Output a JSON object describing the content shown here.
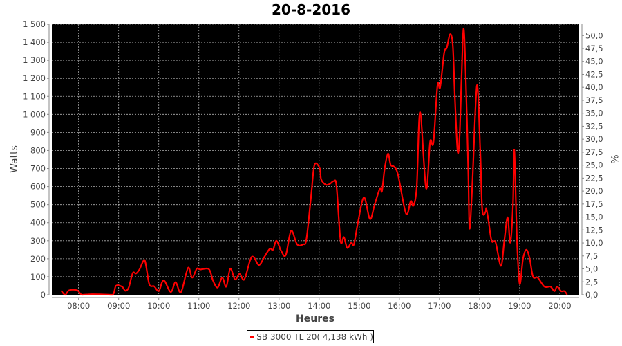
{
  "chart_data": {
    "type": "line",
    "title": "20-8-2016",
    "xlabel": "Heures",
    "ylabel": "Watts",
    "y2label": "%",
    "xlim": [
      "07:20",
      "20:29"
    ],
    "ylim": [
      0,
      1500
    ],
    "y2lim": [
      0,
      52.17
    ],
    "grid": true,
    "background": "#000000",
    "grid_color": "#b0b0b0",
    "xticks": [
      "08:00",
      "09:00",
      "10:00",
      "11:00",
      "12:00",
      "13:00",
      "14:00",
      "15:00",
      "16:00",
      "17:00",
      "18:00",
      "19:00",
      "20:00"
    ],
    "yticks": [
      0,
      100,
      200,
      300,
      400,
      500,
      600,
      700,
      800,
      900,
      1000,
      1100,
      1200,
      1300,
      1400,
      1500
    ],
    "ytick_labels": [
      "0",
      "100",
      "200",
      "300",
      "400",
      "500",
      "600",
      "700",
      "800",
      "900",
      "1 000",
      "1 100",
      "1 200",
      "1 300",
      "1 400",
      "1 500"
    ],
    "y2ticks": [
      0,
      2.5,
      5,
      7.5,
      10,
      12.5,
      15,
      17.5,
      20,
      22.5,
      25,
      27.5,
      30,
      32.5,
      35,
      37.5,
      40,
      42.5,
      45,
      47.5,
      50
    ],
    "y2tick_labels": [
      "0,0",
      "2,5",
      "5,0",
      "7,5",
      "10,0",
      "12,5",
      "15,0",
      "17,5",
      "20,0",
      "22,5",
      "25,0",
      "27,5",
      "30,0",
      "32,5",
      "35,0",
      "37,5",
      "40,0",
      "42,5",
      "45,0",
      "47,5",
      "50,0"
    ],
    "legend_position": "bottom",
    "series": [
      {
        "name": "SB 3000 TL 20( 4,138 kWh )",
        "color": "#ff0000",
        "points": [
          [
            "07:34",
            23
          ],
          [
            "07:40",
            0
          ],
          [
            "07:46",
            25
          ],
          [
            "07:58",
            25
          ],
          [
            "08:05",
            0
          ],
          [
            "08:20",
            3
          ],
          [
            "08:35",
            2
          ],
          [
            "08:51",
            0
          ],
          [
            "08:56",
            50
          ],
          [
            "09:05",
            45
          ],
          [
            "09:10",
            22
          ],
          [
            "09:15",
            40
          ],
          [
            "09:21",
            120
          ],
          [
            "09:26",
            118
          ],
          [
            "09:31",
            140
          ],
          [
            "09:37",
            188
          ],
          [
            "09:40",
            180
          ],
          [
            "09:45",
            70
          ],
          [
            "09:48",
            48
          ],
          [
            "09:53",
            47
          ],
          [
            "10:00",
            20
          ],
          [
            "10:05",
            70
          ],
          [
            "10:09",
            75
          ],
          [
            "10:18",
            15
          ],
          [
            "10:25",
            70
          ],
          [
            "10:31",
            17
          ],
          [
            "10:35",
            30
          ],
          [
            "10:44",
            150
          ],
          [
            "10:50",
            95
          ],
          [
            "10:57",
            145
          ],
          [
            "11:02",
            140
          ],
          [
            "11:15",
            142
          ],
          [
            "11:21",
            80
          ],
          [
            "11:28",
            40
          ],
          [
            "11:35",
            95
          ],
          [
            "11:41",
            45
          ],
          [
            "11:47",
            145
          ],
          [
            "11:54",
            85
          ],
          [
            "12:01",
            115
          ],
          [
            "12:08",
            85
          ],
          [
            "12:17",
            195
          ],
          [
            "12:22",
            210
          ],
          [
            "12:30",
            165
          ],
          [
            "12:38",
            210
          ],
          [
            "12:46",
            255
          ],
          [
            "12:51",
            250
          ],
          [
            "12:56",
            300
          ],
          [
            "13:03",
            245
          ],
          [
            "13:10",
            220
          ],
          [
            "13:18",
            355
          ],
          [
            "13:27",
            280
          ],
          [
            "13:36",
            280
          ],
          [
            "13:41",
            310
          ],
          [
            "13:48",
            550
          ],
          [
            "13:53",
            720
          ],
          [
            "14:01",
            700
          ],
          [
            "14:03",
            640
          ],
          [
            "14:10",
            610
          ],
          [
            "14:16",
            615
          ],
          [
            "14:22",
            630
          ],
          [
            "14:26",
            600
          ],
          [
            "14:32",
            300
          ],
          [
            "14:37",
            320
          ],
          [
            "14:42",
            260
          ],
          [
            "14:48",
            290
          ],
          [
            "14:52",
            280
          ],
          [
            "14:58",
            400
          ],
          [
            "15:07",
            540
          ],
          [
            "15:16",
            420
          ],
          [
            "15:23",
            500
          ],
          [
            "15:31",
            590
          ],
          [
            "15:34",
            575
          ],
          [
            "15:38",
            700
          ],
          [
            "15:43",
            783
          ],
          [
            "15:47",
            720
          ],
          [
            "15:52",
            710
          ],
          [
            "15:58",
            665
          ],
          [
            "16:10",
            450
          ],
          [
            "16:17",
            520
          ],
          [
            "16:21",
            495
          ],
          [
            "16:26",
            600
          ],
          [
            "16:31",
            1013
          ],
          [
            "16:40",
            590
          ],
          [
            "16:46",
            848
          ],
          [
            "16:51",
            845
          ],
          [
            "16:57",
            1160
          ],
          [
            "17:01",
            1150
          ],
          [
            "17:07",
            1340
          ],
          [
            "17:11",
            1370
          ],
          [
            "17:16",
            1445
          ],
          [
            "17:20",
            1380
          ],
          [
            "17:23",
            1100
          ],
          [
            "17:27",
            800
          ],
          [
            "17:30",
            870
          ],
          [
            "17:33",
            1200
          ],
          [
            "17:36",
            1475
          ],
          [
            "17:39",
            1250
          ],
          [
            "17:43",
            700
          ],
          [
            "17:45",
            368
          ],
          [
            "17:49",
            600
          ],
          [
            "17:56",
            1160
          ],
          [
            "18:01",
            800
          ],
          [
            "18:04",
            472
          ],
          [
            "18:09",
            460
          ],
          [
            "18:10",
            480
          ],
          [
            "18:13",
            420
          ],
          [
            "18:18",
            300
          ],
          [
            "18:24",
            290
          ],
          [
            "18:32",
            160
          ],
          [
            "18:37",
            300
          ],
          [
            "18:42",
            430
          ],
          [
            "18:46",
            290
          ],
          [
            "18:50",
            500
          ],
          [
            "18:52",
            800
          ],
          [
            "18:56",
            300
          ],
          [
            "19:00",
            60
          ],
          [
            "19:05",
            200
          ],
          [
            "19:10",
            250
          ],
          [
            "19:15",
            200
          ],
          [
            "19:20",
            100
          ],
          [
            "19:27",
            95
          ],
          [
            "19:37",
            45
          ],
          [
            "19:46",
            45
          ],
          [
            "19:52",
            20
          ],
          [
            "19:56",
            45
          ],
          [
            "20:02",
            20
          ],
          [
            "20:07",
            20
          ],
          [
            "20:11",
            0
          ]
        ]
      }
    ]
  }
}
